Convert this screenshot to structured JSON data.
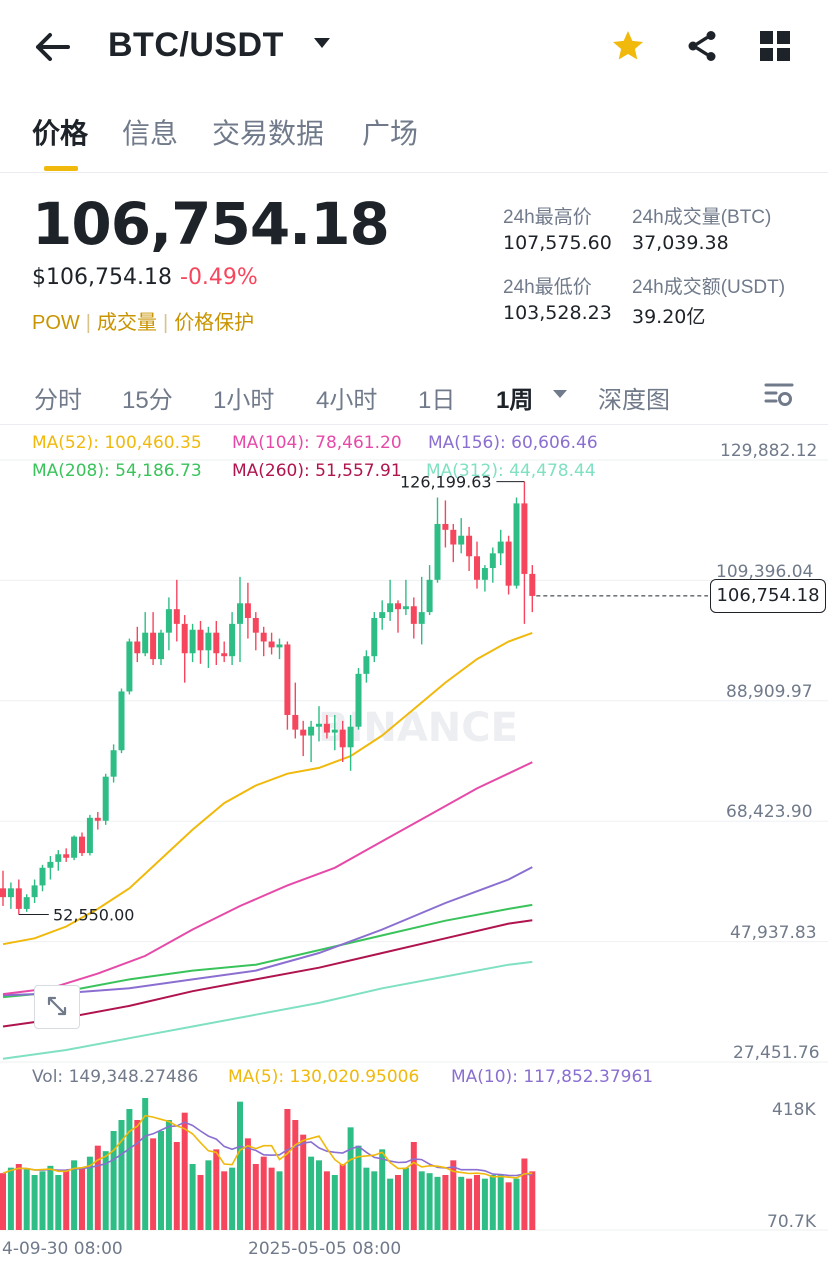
{
  "header": {
    "title": "BTC/USDT",
    "back_icon": "arrow-left-icon",
    "star_color": "#f0b90b"
  },
  "tabs": [
    "价格",
    "信息",
    "交易数据",
    "广场"
  ],
  "price": {
    "last": "106,754.18",
    "usd": "$106,754.18",
    "change": "-0.49%",
    "tags": [
      "POW",
      "成交量",
      "价格保护"
    ]
  },
  "stats": {
    "high_label": "24h最高价",
    "high_value": "107,575.60",
    "vol_btc_label": "24h成交量(BTC)",
    "vol_btc_value": "37,039.38",
    "low_label": "24h最低价",
    "low_value": "103,528.23",
    "vol_usdt_label": "24h成交额(USDT)",
    "vol_usdt_value": "39.20亿"
  },
  "intervals": [
    "分时",
    "15分",
    "1小时",
    "4小时",
    "1日",
    "1周",
    "深度图"
  ],
  "ma_legend": {
    "ma52": "MA(52): 100,460.35",
    "ma104": "MA(104): 78,461.20",
    "ma156": "MA(156): 60,606.46",
    "ma208": "MA(208): 54,186.73",
    "ma260": "MA(260): 51,557.91",
    "ma312": "MA(312): 44,478.44"
  },
  "axis": {
    "y": [
      "129,882.12",
      "109,396.04",
      "88,909.97",
      "68,423.90",
      "47,937.83",
      "27,451.76"
    ],
    "current": "106,754.18",
    "high_mark": "126,199.63",
    "low_mark": "52,550.00",
    "x": [
      "4-09-30 08:00",
      "2025-05-05 08:00"
    ]
  },
  "volume": {
    "vol": "Vol: 149,348.27486",
    "ma5": "MA(5): 130,020.95006",
    "ma10": "MA(10): 117,852.37961",
    "top": "418K",
    "bottom": "70.7K"
  },
  "watermark": "BINANCE",
  "colors": {
    "up": "#2ebd85",
    "down": "#f6465d",
    "ma52": "#f0b90b",
    "ma104": "#e64aa8",
    "ma156": "#8a6fd1",
    "ma208": "#3ac35b",
    "ma260": "#b0144e",
    "ma312": "#7fe0c2"
  },
  "chart_data": {
    "type": "candlestick",
    "interval": "1周",
    "ylim": [
      27451.76,
      129882.12
    ],
    "y_ticks": [
      129882.12,
      109396.04,
      88909.97,
      68423.9,
      47937.83,
      27451.76
    ],
    "candles": [
      [
        57000,
        60000,
        54000,
        55500
      ],
      [
        55500,
        58000,
        53500,
        57000
      ],
      [
        57000,
        58500,
        52550,
        53500
      ],
      [
        53500,
        56000,
        53000,
        55500
      ],
      [
        55500,
        58500,
        54500,
        57500
      ],
      [
        57500,
        61000,
        56500,
        60500
      ],
      [
        60500,
        62500,
        58500,
        61500
      ],
      [
        61500,
        63500,
        60000,
        62800
      ],
      [
        62800,
        63800,
        61500,
        62200
      ],
      [
        62200,
        66000,
        61800,
        65800
      ],
      [
        65800,
        66500,
        62500,
        63000
      ],
      [
        63000,
        69500,
        62600,
        69000
      ],
      [
        69000,
        70000,
        67000,
        68500
      ],
      [
        68500,
        76500,
        67800,
        76000
      ],
      [
        76000,
        81500,
        75000,
        80500
      ],
      [
        80500,
        91000,
        80000,
        90500
      ],
      [
        90500,
        99500,
        90000,
        99000
      ],
      [
        99000,
        101500,
        95500,
        97000
      ],
      [
        97000,
        104000,
        96500,
        100500
      ],
      [
        100500,
        104000,
        95000,
        96000
      ],
      [
        96000,
        101000,
        95000,
        100500
      ],
      [
        100500,
        106500,
        97500,
        104500
      ],
      [
        104500,
        109500,
        99000,
        102000
      ],
      [
        102000,
        103500,
        92000,
        97000
      ],
      [
        97000,
        102000,
        95500,
        101000
      ],
      [
        101000,
        102500,
        95200,
        97500
      ],
      [
        97500,
        101500,
        94500,
        100500
      ],
      [
        100500,
        102500,
        95000,
        97000
      ],
      [
        97000,
        99000,
        95500,
        96500
      ],
      [
        96500,
        104000,
        95000,
        102000
      ],
      [
        102000,
        110000,
        95500,
        105500
      ],
      [
        105500,
        109000,
        99500,
        103000
      ],
      [
        103000,
        104000,
        97500,
        100500
      ],
      [
        100500,
        101500,
        96500,
        99000
      ],
      [
        99000,
        100500,
        96800,
        98000
      ],
      [
        98000,
        99500,
        96000,
        98500
      ],
      [
        98500,
        99000,
        84000,
        86500
      ],
      [
        86500,
        92000,
        82500,
        84000
      ],
      [
        84000,
        85500,
        79500,
        83000
      ],
      [
        83000,
        85500,
        78500,
        84500
      ],
      [
        84500,
        88000,
        82000,
        85000
      ],
      [
        85000,
        86500,
        82500,
        83500
      ],
      [
        83500,
        86500,
        80500,
        84000
      ],
      [
        84000,
        85500,
        78500,
        81000
      ],
      [
        81000,
        86500,
        77000,
        84500
      ],
      [
        84500,
        94500,
        84000,
        93500
      ],
      [
        93500,
        97500,
        92000,
        96500
      ],
      [
        96500,
        104000,
        95500,
        103000
      ],
      [
        103000,
        106000,
        101000,
        104000
      ],
      [
        104000,
        109500,
        102500,
        105500
      ],
      [
        105500,
        106000,
        100500,
        104500
      ],
      [
        104500,
        109500,
        103500,
        105000
      ],
      [
        105000,
        106500,
        99500,
        102000
      ],
      [
        102000,
        110000,
        98500,
        104000
      ],
      [
        104000,
        112000,
        103500,
        109500
      ],
      [
        109500,
        123500,
        109000,
        119000
      ],
      [
        119000,
        123000,
        115000,
        118000
      ],
      [
        118000,
        119000,
        112500,
        115500
      ],
      [
        115500,
        120000,
        114000,
        117000
      ],
      [
        117000,
        118500,
        111000,
        113500
      ],
      [
        113500,
        116000,
        108000,
        109500
      ],
      [
        109500,
        112000,
        107500,
        111500
      ],
      [
        111500,
        115000,
        109000,
        114000
      ],
      [
        114000,
        118000,
        112000,
        116000
      ],
      [
        116000,
        117000,
        107000,
        108500
      ],
      [
        108500,
        123500,
        108000,
        122500
      ],
      [
        122500,
        126199.63,
        102000,
        110500
      ],
      [
        110500,
        112000,
        104000,
        106754.18
      ]
    ],
    "moving_averages": [
      {
        "name": "MA(52)",
        "value": 100460.35
      },
      {
        "name": "MA(104)",
        "value": 78461.2
      },
      {
        "name": "MA(156)",
        "value": 60606.46
      },
      {
        "name": "MA(208)",
        "value": 54186.73
      },
      {
        "name": "MA(260)",
        "value": 51557.91
      },
      {
        "name": "MA(312)",
        "value": 44478.44
      }
    ],
    "ma_paths": {
      "ma52": [
        [
          0,
          47500
        ],
        [
          4,
          48500
        ],
        [
          8,
          50500
        ],
        [
          12,
          53500
        ],
        [
          16,
          57000
        ],
        [
          20,
          62000
        ],
        [
          24,
          67000
        ],
        [
          28,
          71500
        ],
        [
          32,
          74500
        ],
        [
          36,
          76500
        ],
        [
          40,
          77500
        ],
        [
          44,
          79500
        ],
        [
          48,
          83000
        ],
        [
          52,
          87500
        ],
        [
          56,
          92000
        ],
        [
          60,
          96000
        ],
        [
          64,
          99000
        ],
        [
          67,
          100460.35
        ]
      ],
      "ma104": [
        [
          0,
          39000
        ],
        [
          6,
          40000
        ],
        [
          12,
          42500
        ],
        [
          18,
          45500
        ],
        [
          24,
          50000
        ],
        [
          30,
          54000
        ],
        [
          36,
          57500
        ],
        [
          42,
          60500
        ],
        [
          48,
          65000
        ],
        [
          54,
          69500
        ],
        [
          60,
          74000
        ],
        [
          67,
          78461.2
        ]
      ],
      "ma156": [
        [
          0,
          38800
        ],
        [
          8,
          39200
        ],
        [
          16,
          40000
        ],
        [
          24,
          41500
        ],
        [
          32,
          43000
        ],
        [
          40,
          46000
        ],
        [
          48,
          50000
        ],
        [
          56,
          54500
        ],
        [
          64,
          58500
        ],
        [
          67,
          60606.46
        ]
      ],
      "ma208": [
        [
          0,
          38500
        ],
        [
          8,
          39500
        ],
        [
          16,
          41500
        ],
        [
          24,
          43000
        ],
        [
          32,
          44000
        ],
        [
          40,
          46500
        ],
        [
          48,
          49000
        ],
        [
          56,
          51500
        ],
        [
          64,
          53500
        ],
        [
          67,
          54186.73
        ]
      ],
      "ma260": [
        [
          0,
          33500
        ],
        [
          8,
          35000
        ],
        [
          16,
          37000
        ],
        [
          24,
          39500
        ],
        [
          32,
          41500
        ],
        [
          40,
          43500
        ],
        [
          48,
          46000
        ],
        [
          56,
          48500
        ],
        [
          64,
          51000
        ],
        [
          67,
          51557.91
        ]
      ],
      "ma312": [
        [
          0,
          28000
        ],
        [
          8,
          29500
        ],
        [
          16,
          31500
        ],
        [
          24,
          33500
        ],
        [
          32,
          35500
        ],
        [
          40,
          37500
        ],
        [
          48,
          40000
        ],
        [
          56,
          42000
        ],
        [
          64,
          44000
        ],
        [
          67,
          44478.44
        ]
      ]
    },
    "volume_ylim": [
      70700,
      418000
    ],
    "volumes": [
      155,
      170,
      180,
      165,
      150,
      160,
      175,
      150,
      165,
      190,
      170,
      200,
      230,
      215,
      270,
      300,
      330,
      300,
      360,
      250,
      270,
      300,
      240,
      320,
      180,
      150,
      190,
      220,
      160,
      170,
      350,
      250,
      180,
      200,
      170,
      160,
      330,
      300,
      260,
      200,
      190,
      160,
      150,
      180,
      280,
      230,
      170,
      160,
      220,
      140,
      150,
      170,
      240,
      160,
      155,
      145,
      150,
      190,
      145,
      140,
      150,
      140,
      150,
      150,
      130,
      140,
      195,
      160
    ]
  }
}
